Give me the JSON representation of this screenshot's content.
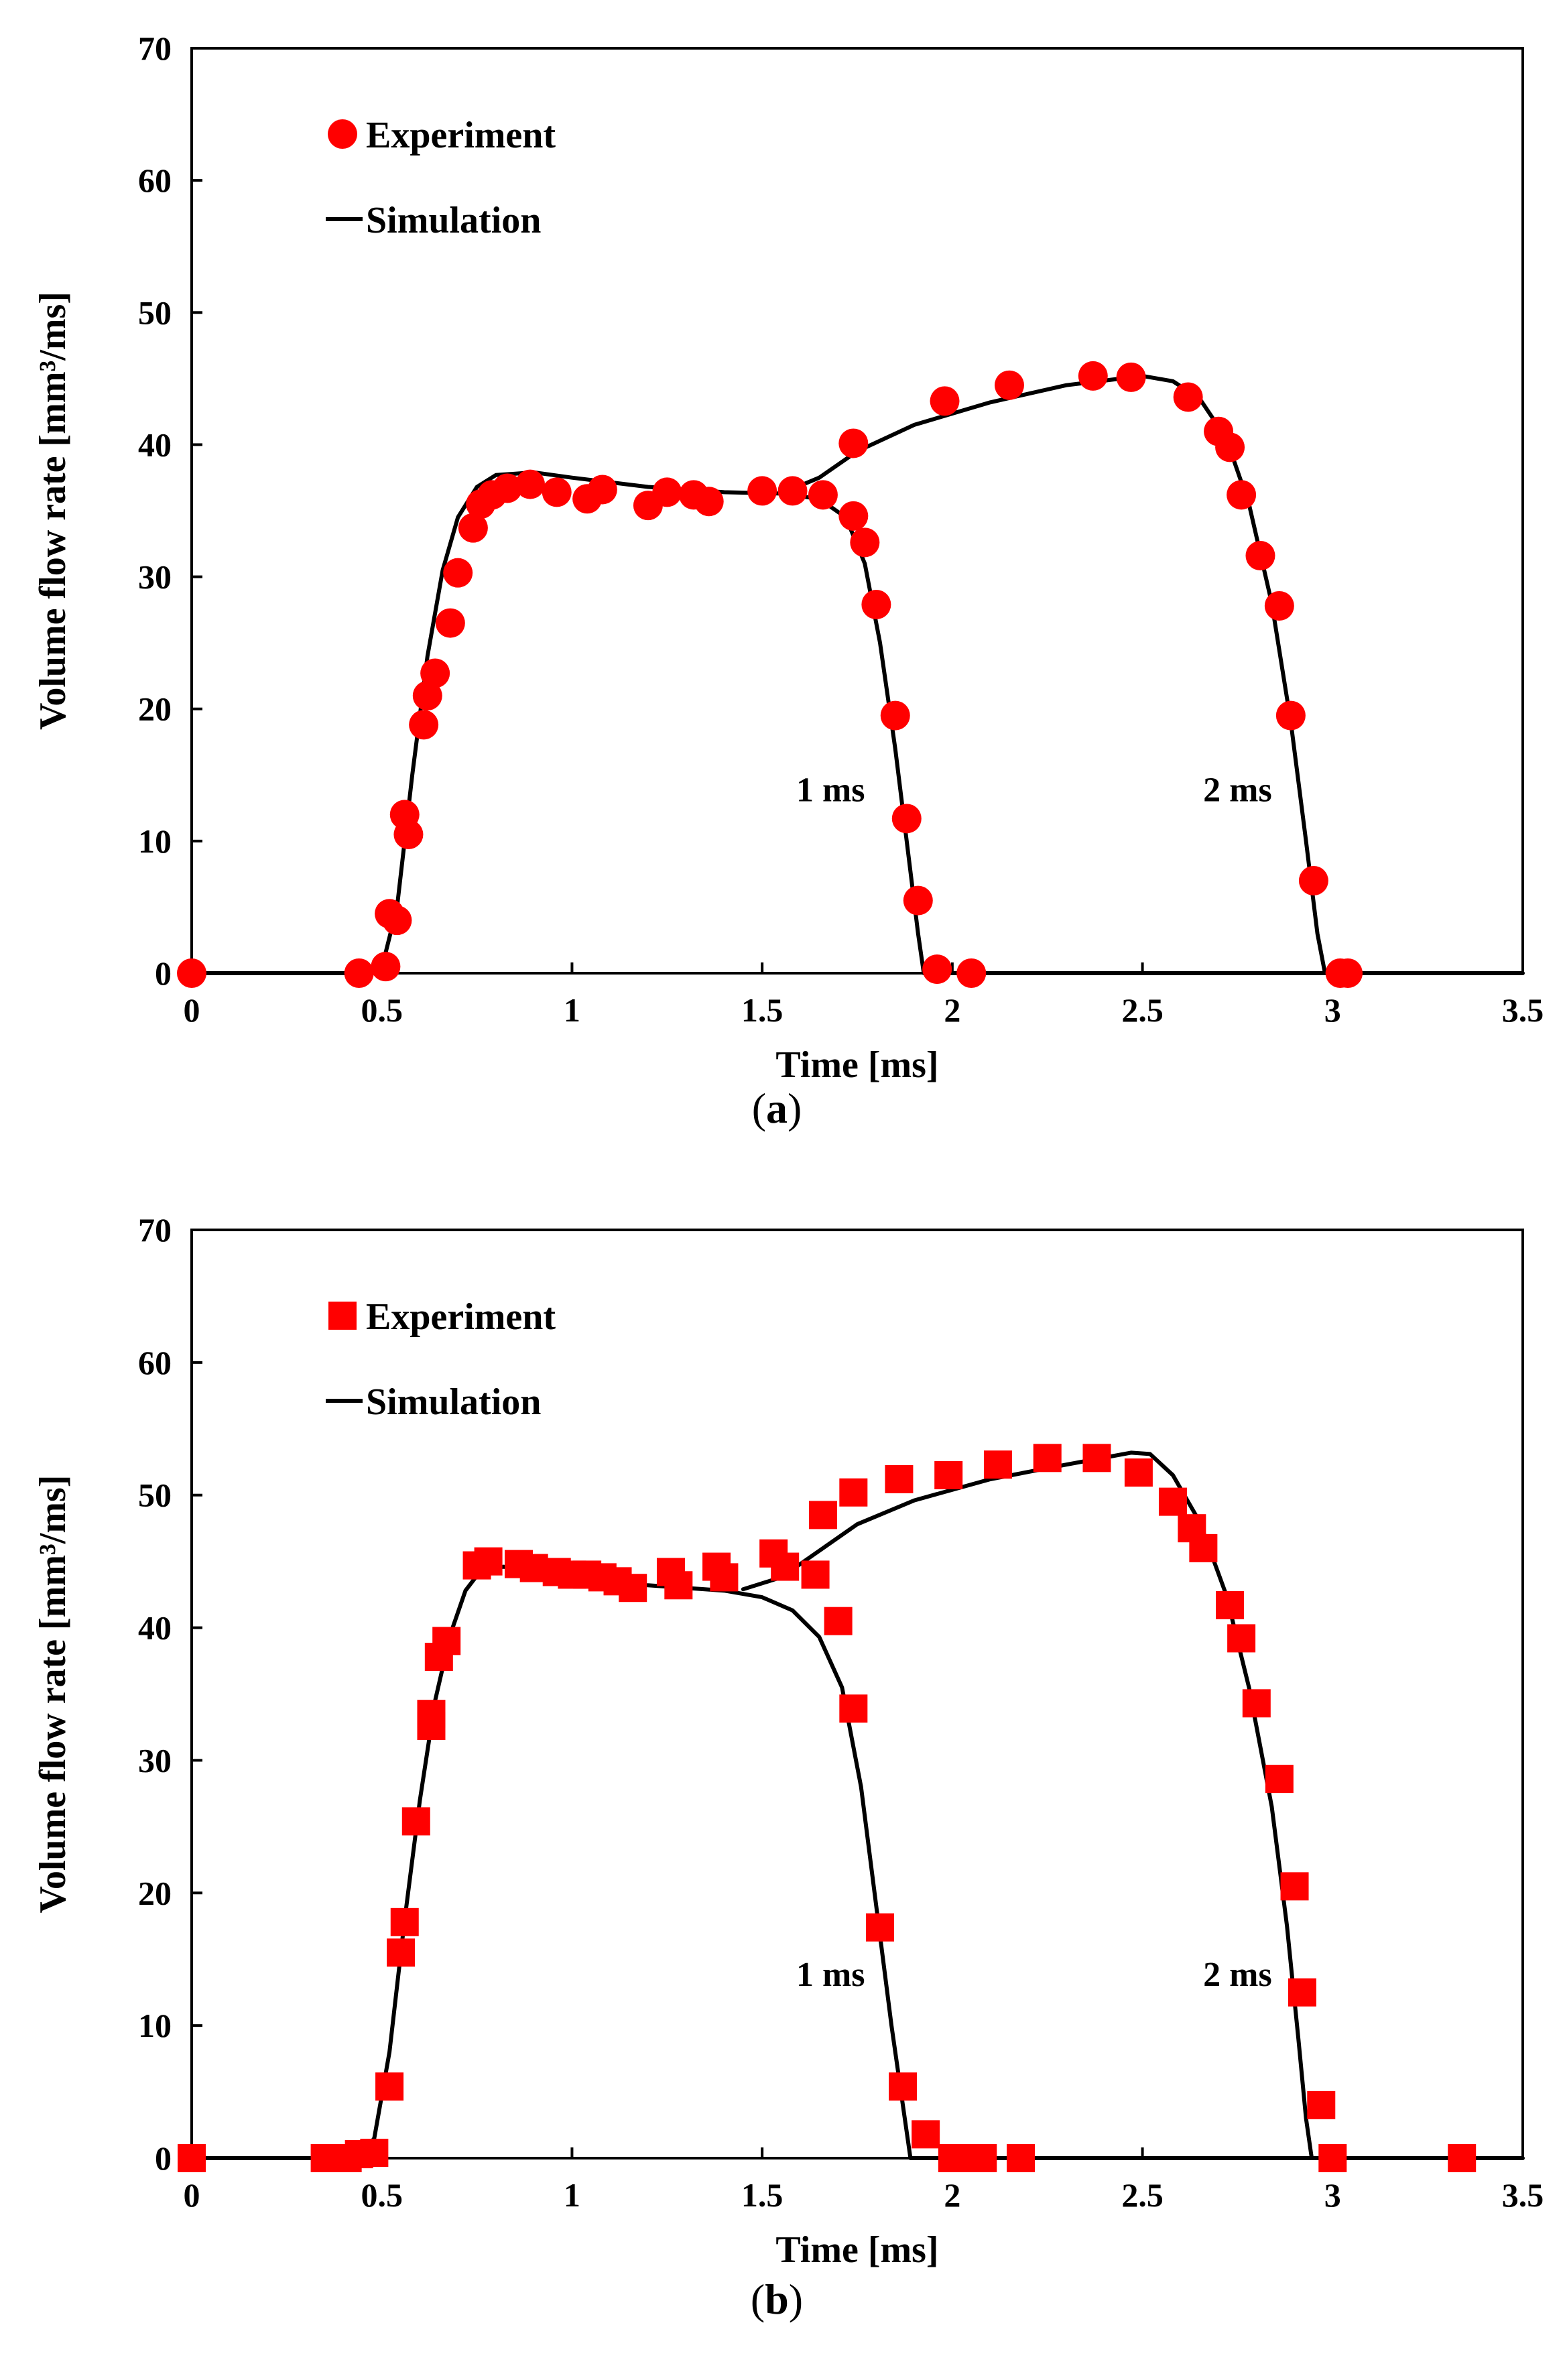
{
  "chart_data": [
    {
      "type": "scatter",
      "panel": "a",
      "caption_open": "(",
      "caption_letter": "a",
      "caption_close": ")",
      "xlabel": "Time [ms]",
      "ylabel": "Volume flow rate [mm³/ms]",
      "xlim": [
        0,
        3.5
      ],
      "ylim": [
        0,
        70
      ],
      "xticks": [
        "0",
        "0.5",
        "1",
        "1.5",
        "2",
        "2.5",
        "3",
        "3.5"
      ],
      "yticks": [
        "0",
        "10",
        "20",
        "30",
        "40",
        "50",
        "60",
        "70"
      ],
      "legend": {
        "experiment": "Experiment",
        "simulation": "Simulation",
        "placement": "top-left"
      },
      "marker": "circle",
      "colors": {
        "experiment": "#ff0000",
        "simulation": "#000000"
      },
      "annotations": [
        {
          "text": "1 ms",
          "x": 1.68,
          "y": 13
        },
        {
          "text": "2 ms",
          "x": 2.75,
          "y": 13
        }
      ],
      "experiment": [
        [
          0,
          0
        ],
        [
          0.44,
          0
        ],
        [
          0.51,
          0.5
        ],
        [
          0.52,
          4.5
        ],
        [
          0.54,
          4
        ],
        [
          0.56,
          12
        ],
        [
          0.57,
          10.5
        ],
        [
          0.61,
          18.8
        ],
        [
          0.62,
          21
        ],
        [
          0.64,
          22.7
        ],
        [
          0.68,
          26.5
        ],
        [
          0.7,
          30.3
        ],
        [
          0.74,
          33.7
        ],
        [
          0.76,
          35.5
        ],
        [
          0.79,
          36.2
        ],
        [
          0.83,
          36.7
        ],
        [
          0.89,
          37
        ],
        [
          0.96,
          36.4
        ],
        [
          1.04,
          35.9
        ],
        [
          1.08,
          36.6
        ],
        [
          1.2,
          35.4
        ],
        [
          1.25,
          36.4
        ],
        [
          1.32,
          36.2
        ],
        [
          1.36,
          35.7
        ],
        [
          1.5,
          36.5
        ],
        [
          1.58,
          36.5
        ],
        [
          1.66,
          36.2
        ],
        [
          1.74,
          34.6
        ],
        [
          1.77,
          32.6
        ],
        [
          1.8,
          27.9
        ],
        [
          1.85,
          19.5
        ],
        [
          1.88,
          11.7
        ],
        [
          1.91,
          5.5
        ],
        [
          1.96,
          0.3
        ],
        [
          2.05,
          0
        ],
        [
          1.74,
          40.1
        ],
        [
          1.98,
          43.3
        ],
        [
          2.15,
          44.5
        ],
        [
          2.37,
          45.2
        ],
        [
          2.47,
          45.1
        ],
        [
          2.62,
          43.6
        ],
        [
          2.7,
          41
        ],
        [
          2.73,
          39.8
        ],
        [
          2.76,
          36.2
        ],
        [
          2.81,
          31.6
        ],
        [
          2.86,
          27.8
        ],
        [
          2.89,
          19.5
        ],
        [
          2.95,
          7
        ],
        [
          3.02,
          0
        ],
        [
          3.04,
          0
        ]
      ],
      "simulation": [
        {
          "name": "1 ms",
          "points": [
            [
              0,
              0
            ],
            [
              0.45,
              0
            ],
            [
              0.5,
              0.4
            ],
            [
              0.54,
              5
            ],
            [
              0.58,
              15
            ],
            [
              0.62,
              24
            ],
            [
              0.66,
              30.5
            ],
            [
              0.7,
              34.5
            ],
            [
              0.75,
              36.8
            ],
            [
              0.8,
              37.7
            ],
            [
              0.9,
              37.9
            ],
            [
              1.0,
              37.5
            ],
            [
              1.2,
              36.8
            ],
            [
              1.4,
              36.4
            ],
            [
              1.55,
              36.3
            ],
            [
              1.65,
              35.9
            ],
            [
              1.72,
              34.5
            ],
            [
              1.77,
              31
            ],
            [
              1.81,
              25
            ],
            [
              1.85,
              17
            ],
            [
              1.88,
              10
            ],
            [
              1.91,
              3
            ],
            [
              1.925,
              0
            ],
            [
              3.5,
              0
            ]
          ]
        },
        {
          "name": "2 ms",
          "points": [
            [
              1.55,
              36.3
            ],
            [
              1.65,
              37.5
            ],
            [
              1.75,
              39.5
            ],
            [
              1.9,
              41.5
            ],
            [
              2.1,
              43.2
            ],
            [
              2.3,
              44.5
            ],
            [
              2.5,
              45.2
            ],
            [
              2.58,
              44.8
            ],
            [
              2.65,
              43.5
            ],
            [
              2.72,
              40.5
            ],
            [
              2.78,
              35.5
            ],
            [
              2.84,
              28
            ],
            [
              2.89,
              19
            ],
            [
              2.93,
              10
            ],
            [
              2.96,
              3
            ],
            [
              2.98,
              0
            ]
          ]
        }
      ]
    },
    {
      "type": "scatter",
      "panel": "b",
      "caption_open": "(",
      "caption_letter": "b",
      "caption_close": ")",
      "xlabel": "Time [ms]",
      "ylabel": "Volume flow rate [mm³/ms]",
      "xlim": [
        0,
        3.5
      ],
      "ylim": [
        0,
        70
      ],
      "xticks": [
        "0",
        "0.5",
        "1",
        "1.5",
        "2",
        "2.5",
        "3",
        "3.5"
      ],
      "yticks": [
        "0",
        "10",
        "20",
        "30",
        "40",
        "50",
        "60",
        "70"
      ],
      "legend": {
        "experiment": "Experiment",
        "simulation": "Simulation",
        "placement": "top-left"
      },
      "marker": "square",
      "colors": {
        "experiment": "#ff0000",
        "simulation": "#000000"
      },
      "annotations": [
        {
          "text": "1 ms",
          "x": 1.68,
          "y": 13
        },
        {
          "text": "2 ms",
          "x": 2.75,
          "y": 13
        }
      ],
      "experiment": [
        [
          0,
          0
        ],
        [
          0.35,
          0
        ],
        [
          0.38,
          0
        ],
        [
          0.41,
          0
        ],
        [
          0.44,
          0.3
        ],
        [
          0.48,
          0.4
        ],
        [
          0.52,
          5.4
        ],
        [
          0.55,
          15.5
        ],
        [
          0.56,
          17.8
        ],
        [
          0.59,
          25.4
        ],
        [
          0.63,
          32.6
        ],
        [
          0.63,
          33.5
        ],
        [
          0.65,
          37.8
        ],
        [
          0.67,
          39
        ],
        [
          0.75,
          44.7
        ],
        [
          0.78,
          45
        ],
        [
          0.86,
          44.8
        ],
        [
          0.9,
          44.5
        ],
        [
          0.96,
          44.2
        ],
        [
          1.0,
          44
        ],
        [
          1.04,
          44
        ],
        [
          1.08,
          43.8
        ],
        [
          1.12,
          43.5
        ],
        [
          1.16,
          43
        ],
        [
          1.26,
          44.2
        ],
        [
          1.28,
          43.2
        ],
        [
          1.38,
          44.6
        ],
        [
          1.4,
          43.8
        ],
        [
          1.53,
          45.6
        ],
        [
          1.56,
          44.6
        ],
        [
          1.64,
          44
        ],
        [
          1.66,
          48.5
        ],
        [
          1.7,
          40.5
        ],
        [
          1.74,
          50.2
        ],
        [
          1.74,
          33.9
        ],
        [
          1.81,
          17.4
        ],
        [
          1.86,
          51.2
        ],
        [
          1.87,
          5.4
        ],
        [
          1.93,
          1.8
        ],
        [
          1.99,
          51.5
        ],
        [
          2.0,
          0
        ],
        [
          2.05,
          0
        ],
        [
          2.08,
          0
        ],
        [
          2.12,
          52.3
        ],
        [
          2.18,
          0
        ],
        [
          2.25,
          52.8
        ],
        [
          2.38,
          52.8
        ],
        [
          2.49,
          51.7
        ],
        [
          2.58,
          49.5
        ],
        [
          2.63,
          47.5
        ],
        [
          2.66,
          46
        ],
        [
          2.73,
          41.7
        ],
        [
          2.76,
          39.2
        ],
        [
          2.8,
          34.3
        ],
        [
          2.86,
          28.6
        ],
        [
          2.9,
          20.5
        ],
        [
          2.92,
          12.5
        ],
        [
          2.97,
          4
        ],
        [
          3.0,
          0
        ],
        [
          3.34,
          0
        ]
      ],
      "simulation": [
        {
          "name": "1 ms",
          "points": [
            [
              0,
              0
            ],
            [
              0.44,
              0
            ],
            [
              0.48,
              1.5
            ],
            [
              0.52,
              8
            ],
            [
              0.56,
              18
            ],
            [
              0.6,
              27
            ],
            [
              0.64,
              34.5
            ],
            [
              0.68,
              39.5
            ],
            [
              0.72,
              42.8
            ],
            [
              0.76,
              44.3
            ],
            [
              0.82,
              44.6
            ],
            [
              0.9,
              44.3
            ],
            [
              1.0,
              43.8
            ],
            [
              1.2,
              43.2
            ],
            [
              1.4,
              42.8
            ],
            [
              1.5,
              42.3
            ],
            [
              1.58,
              41.3
            ],
            [
              1.65,
              39.3
            ],
            [
              1.71,
              35.5
            ],
            [
              1.76,
              28
            ],
            [
              1.8,
              19
            ],
            [
              1.84,
              10
            ],
            [
              1.87,
              4
            ],
            [
              1.89,
              0
            ],
            [
              3.5,
              0
            ]
          ]
        },
        {
          "name": "2 ms",
          "points": [
            [
              1.45,
              42.9
            ],
            [
              1.55,
              43.8
            ],
            [
              1.65,
              45.8
            ],
            [
              1.75,
              47.8
            ],
            [
              1.9,
              49.6
            ],
            [
              2.1,
              51.2
            ],
            [
              2.3,
              52.3
            ],
            [
              2.47,
              53.2
            ],
            [
              2.52,
              53.1
            ],
            [
              2.58,
              51.5
            ],
            [
              2.65,
              48
            ],
            [
              2.72,
              42.5
            ],
            [
              2.78,
              35.5
            ],
            [
              2.84,
              26.5
            ],
            [
              2.88,
              17.5
            ],
            [
              2.91,
              9
            ],
            [
              2.93,
              3
            ],
            [
              2.945,
              0
            ]
          ]
        }
      ]
    }
  ]
}
